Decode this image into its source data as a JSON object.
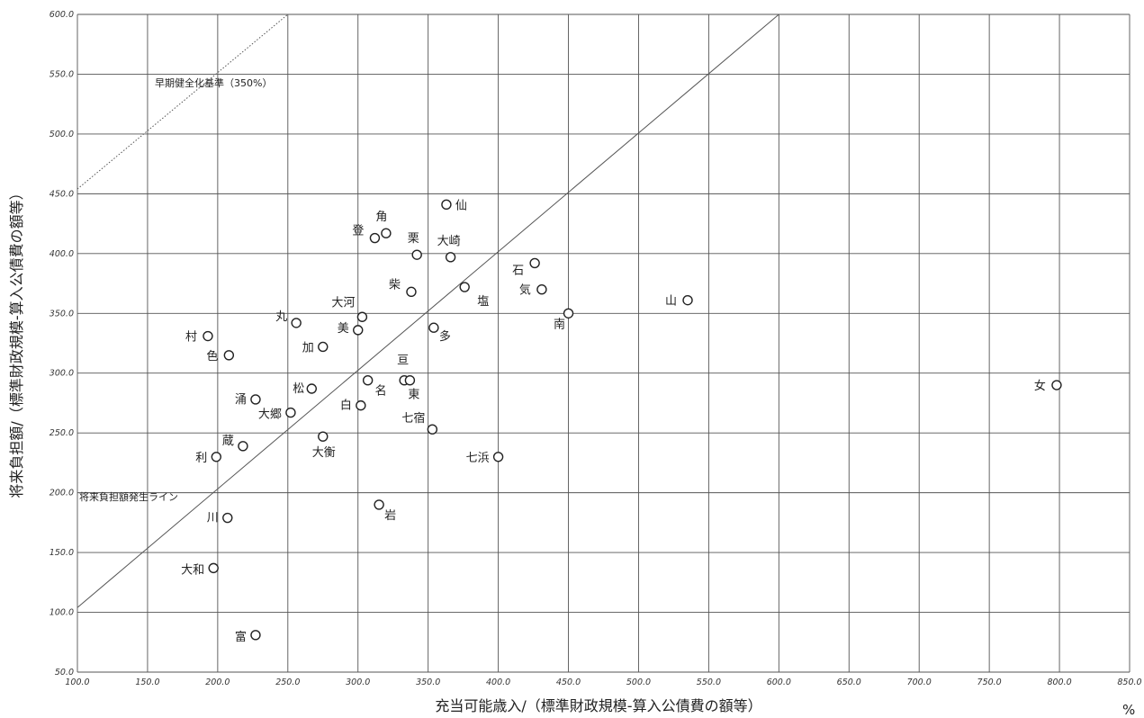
{
  "chart_data": {
    "type": "scatter",
    "xlabel": "充当可能歳入/（標準財政規模-算入公債費の額等）",
    "ylabel": "将来負担額/（標準財政規模-算入公債費の額等）",
    "x_unit": "%",
    "xlim": [
      100,
      850
    ],
    "ylim": [
      50,
      600
    ],
    "grid": true,
    "x_ticks": [
      "100.0",
      "150.0",
      "200.0",
      "250.0",
      "300.0",
      "350.0",
      "400.0",
      "450.0",
      "500.0",
      "550.0",
      "600.0",
      "650.0",
      "700.0",
      "750.0",
      "800.0",
      "850.0"
    ],
    "y_ticks": [
      "50.0",
      "100.0",
      "150.0",
      "200.0",
      "250.0",
      "300.0",
      "350.0",
      "400.0",
      "450.0",
      "500.0",
      "550.0",
      "600.0"
    ],
    "reference_lines": [
      {
        "label": "将来負担額発生ライン",
        "style": "solid",
        "x": [
          100,
          600
        ],
        "y": [
          104,
          600
        ]
      },
      {
        "label": "早期健全化基準（350%）",
        "style": "dotted",
        "x": [
          100,
          250
        ],
        "y": [
          454,
          600
        ]
      }
    ],
    "points": [
      {
        "label": "仙",
        "x": 363,
        "y": 441
      },
      {
        "label": "角",
        "x": 320,
        "y": 417
      },
      {
        "label": "登",
        "x": 312,
        "y": 413
      },
      {
        "label": "栗",
        "x": 342,
        "y": 399
      },
      {
        "label": "大崎",
        "x": 366,
        "y": 397
      },
      {
        "label": "石",
        "x": 426,
        "y": 392
      },
      {
        "label": "気",
        "x": 431,
        "y": 370
      },
      {
        "label": "塩",
        "x": 376,
        "y": 372
      },
      {
        "label": "柴",
        "x": 338,
        "y": 368
      },
      {
        "label": "山",
        "x": 535,
        "y": 361
      },
      {
        "label": "南",
        "x": 450,
        "y": 350
      },
      {
        "label": "大河",
        "x": 303,
        "y": 347
      },
      {
        "label": "丸",
        "x": 256,
        "y": 342
      },
      {
        "label": "美",
        "x": 300,
        "y": 336
      },
      {
        "label": "多",
        "x": 354,
        "y": 338
      },
      {
        "label": "村",
        "x": 193,
        "y": 331
      },
      {
        "label": "加",
        "x": 275,
        "y": 322
      },
      {
        "label": "色",
        "x": 208,
        "y": 315
      },
      {
        "label": "亘",
        "x": 333,
        "y": 294
      },
      {
        "label": "東",
        "x": 337,
        "y": 294
      },
      {
        "label": "名",
        "x": 307,
        "y": 294
      },
      {
        "label": "女",
        "x": 798,
        "y": 290
      },
      {
        "label": "松",
        "x": 267,
        "y": 287
      },
      {
        "label": "涌",
        "x": 227,
        "y": 278
      },
      {
        "label": "白",
        "x": 302,
        "y": 273
      },
      {
        "label": "大郷",
        "x": 252,
        "y": 267
      },
      {
        "label": "七宿",
        "x": 353,
        "y": 253
      },
      {
        "label": "大衡",
        "x": 275,
        "y": 247
      },
      {
        "label": "蔵",
        "x": 218,
        "y": 239
      },
      {
        "label": "利",
        "x": 199,
        "y": 230
      },
      {
        "label": "七浜",
        "x": 400,
        "y": 230
      },
      {
        "label": "岩",
        "x": 315,
        "y": 190
      },
      {
        "label": "川",
        "x": 207,
        "y": 179
      },
      {
        "label": "大和",
        "x": 197,
        "y": 137
      },
      {
        "label": "富",
        "x": 227,
        "y": 81
      }
    ]
  }
}
